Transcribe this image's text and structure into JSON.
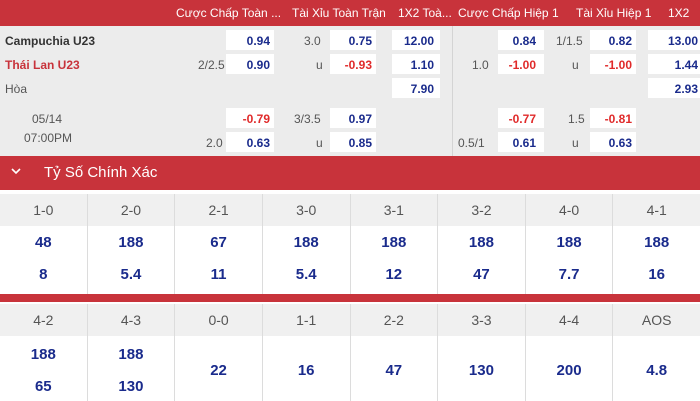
{
  "header": {
    "cols": [
      "Cược Chấp Toàn ...",
      "Tài Xỉu Toàn Trận",
      "1X2 Toà...",
      "Cược Chấp Hiệp 1",
      "Tài Xỉu Hiệp 1",
      "1X2"
    ]
  },
  "match": {
    "home": "Campuchia U23",
    "away": "Thái Lan U23",
    "draw": "Hòa",
    "date": "05/14",
    "time": "07:00PM"
  },
  "odds": {
    "row1": {
      "ft_hdp_home": "0.94",
      "ft_ou_line": "3.0",
      "ft_ou_over": "0.75",
      "ft_1x2_home": "12.00",
      "h1_hdp_home": "0.84",
      "h1_ou_line": "1/1.5",
      "h1_ou_over": "0.82",
      "h1_1x2_home": "13.00"
    },
    "row2": {
      "ft_hdp_line": "2/2.5",
      "ft_hdp_away": "0.90",
      "ft_ou_u": "u",
      "ft_ou_under": "-0.93",
      "ft_1x2_away": "1.10",
      "h1_hdp_line": "1.0",
      "h1_hdp_away": "-1.00",
      "h1_ou_u": "u",
      "h1_ou_under": "-1.00",
      "h1_1x2_away": "1.44"
    },
    "row3": {
      "ft_1x2_draw": "7.90",
      "h1_1x2_draw": "2.93"
    },
    "row4": {
      "ft_hdp_home": "-0.79",
      "ft_ou_line": "3/3.5",
      "ft_ou_over": "0.97",
      "h1_hdp_home": "-0.77",
      "h1_ou_line": "1.5",
      "h1_ou_over": "-0.81"
    },
    "row5": {
      "ft_hdp_line": "2.0",
      "ft_hdp_away": "0.63",
      "ft_ou_u": "u",
      "ft_ou_under": "0.85",
      "h1_hdp_line": "0.5/1",
      "h1_hdp_away": "0.61",
      "h1_ou_u": "u",
      "h1_ou_under": "0.63"
    }
  },
  "section": {
    "title": "Tỷ Số Chính Xác"
  },
  "scores_top": [
    {
      "label": "1-0",
      "a": "48",
      "b": "8"
    },
    {
      "label": "2-0",
      "a": "188",
      "b": "5.4"
    },
    {
      "label": "2-1",
      "a": "67",
      "b": "11"
    },
    {
      "label": "3-0",
      "a": "188",
      "b": "5.4"
    },
    {
      "label": "3-1",
      "a": "188",
      "b": "12"
    },
    {
      "label": "3-2",
      "a": "188",
      "b": "47"
    },
    {
      "label": "4-0",
      "a": "188",
      "b": "7.7"
    },
    {
      "label": "4-1",
      "a": "188",
      "b": "16"
    }
  ],
  "scores_bottom": [
    {
      "label": "4-2",
      "a": "188",
      "b": "65"
    },
    {
      "label": "4-3",
      "a": "188",
      "b": "130"
    },
    {
      "label": "0-0",
      "a": "",
      "b": "",
      "mid": "22"
    },
    {
      "label": "1-1",
      "a": "",
      "b": "",
      "mid": "16"
    },
    {
      "label": "2-2",
      "a": "",
      "b": "",
      "mid": "47"
    },
    {
      "label": "3-3",
      "a": "",
      "b": "",
      "mid": "130"
    },
    {
      "label": "4-4",
      "a": "",
      "b": "",
      "mid": "200"
    },
    {
      "label": "AOS",
      "a": "",
      "b": "",
      "mid": "4.8"
    }
  ],
  "colors": {
    "accent": "#c8333b",
    "value": "#1a2b8c",
    "negative": "#e02a2a"
  }
}
